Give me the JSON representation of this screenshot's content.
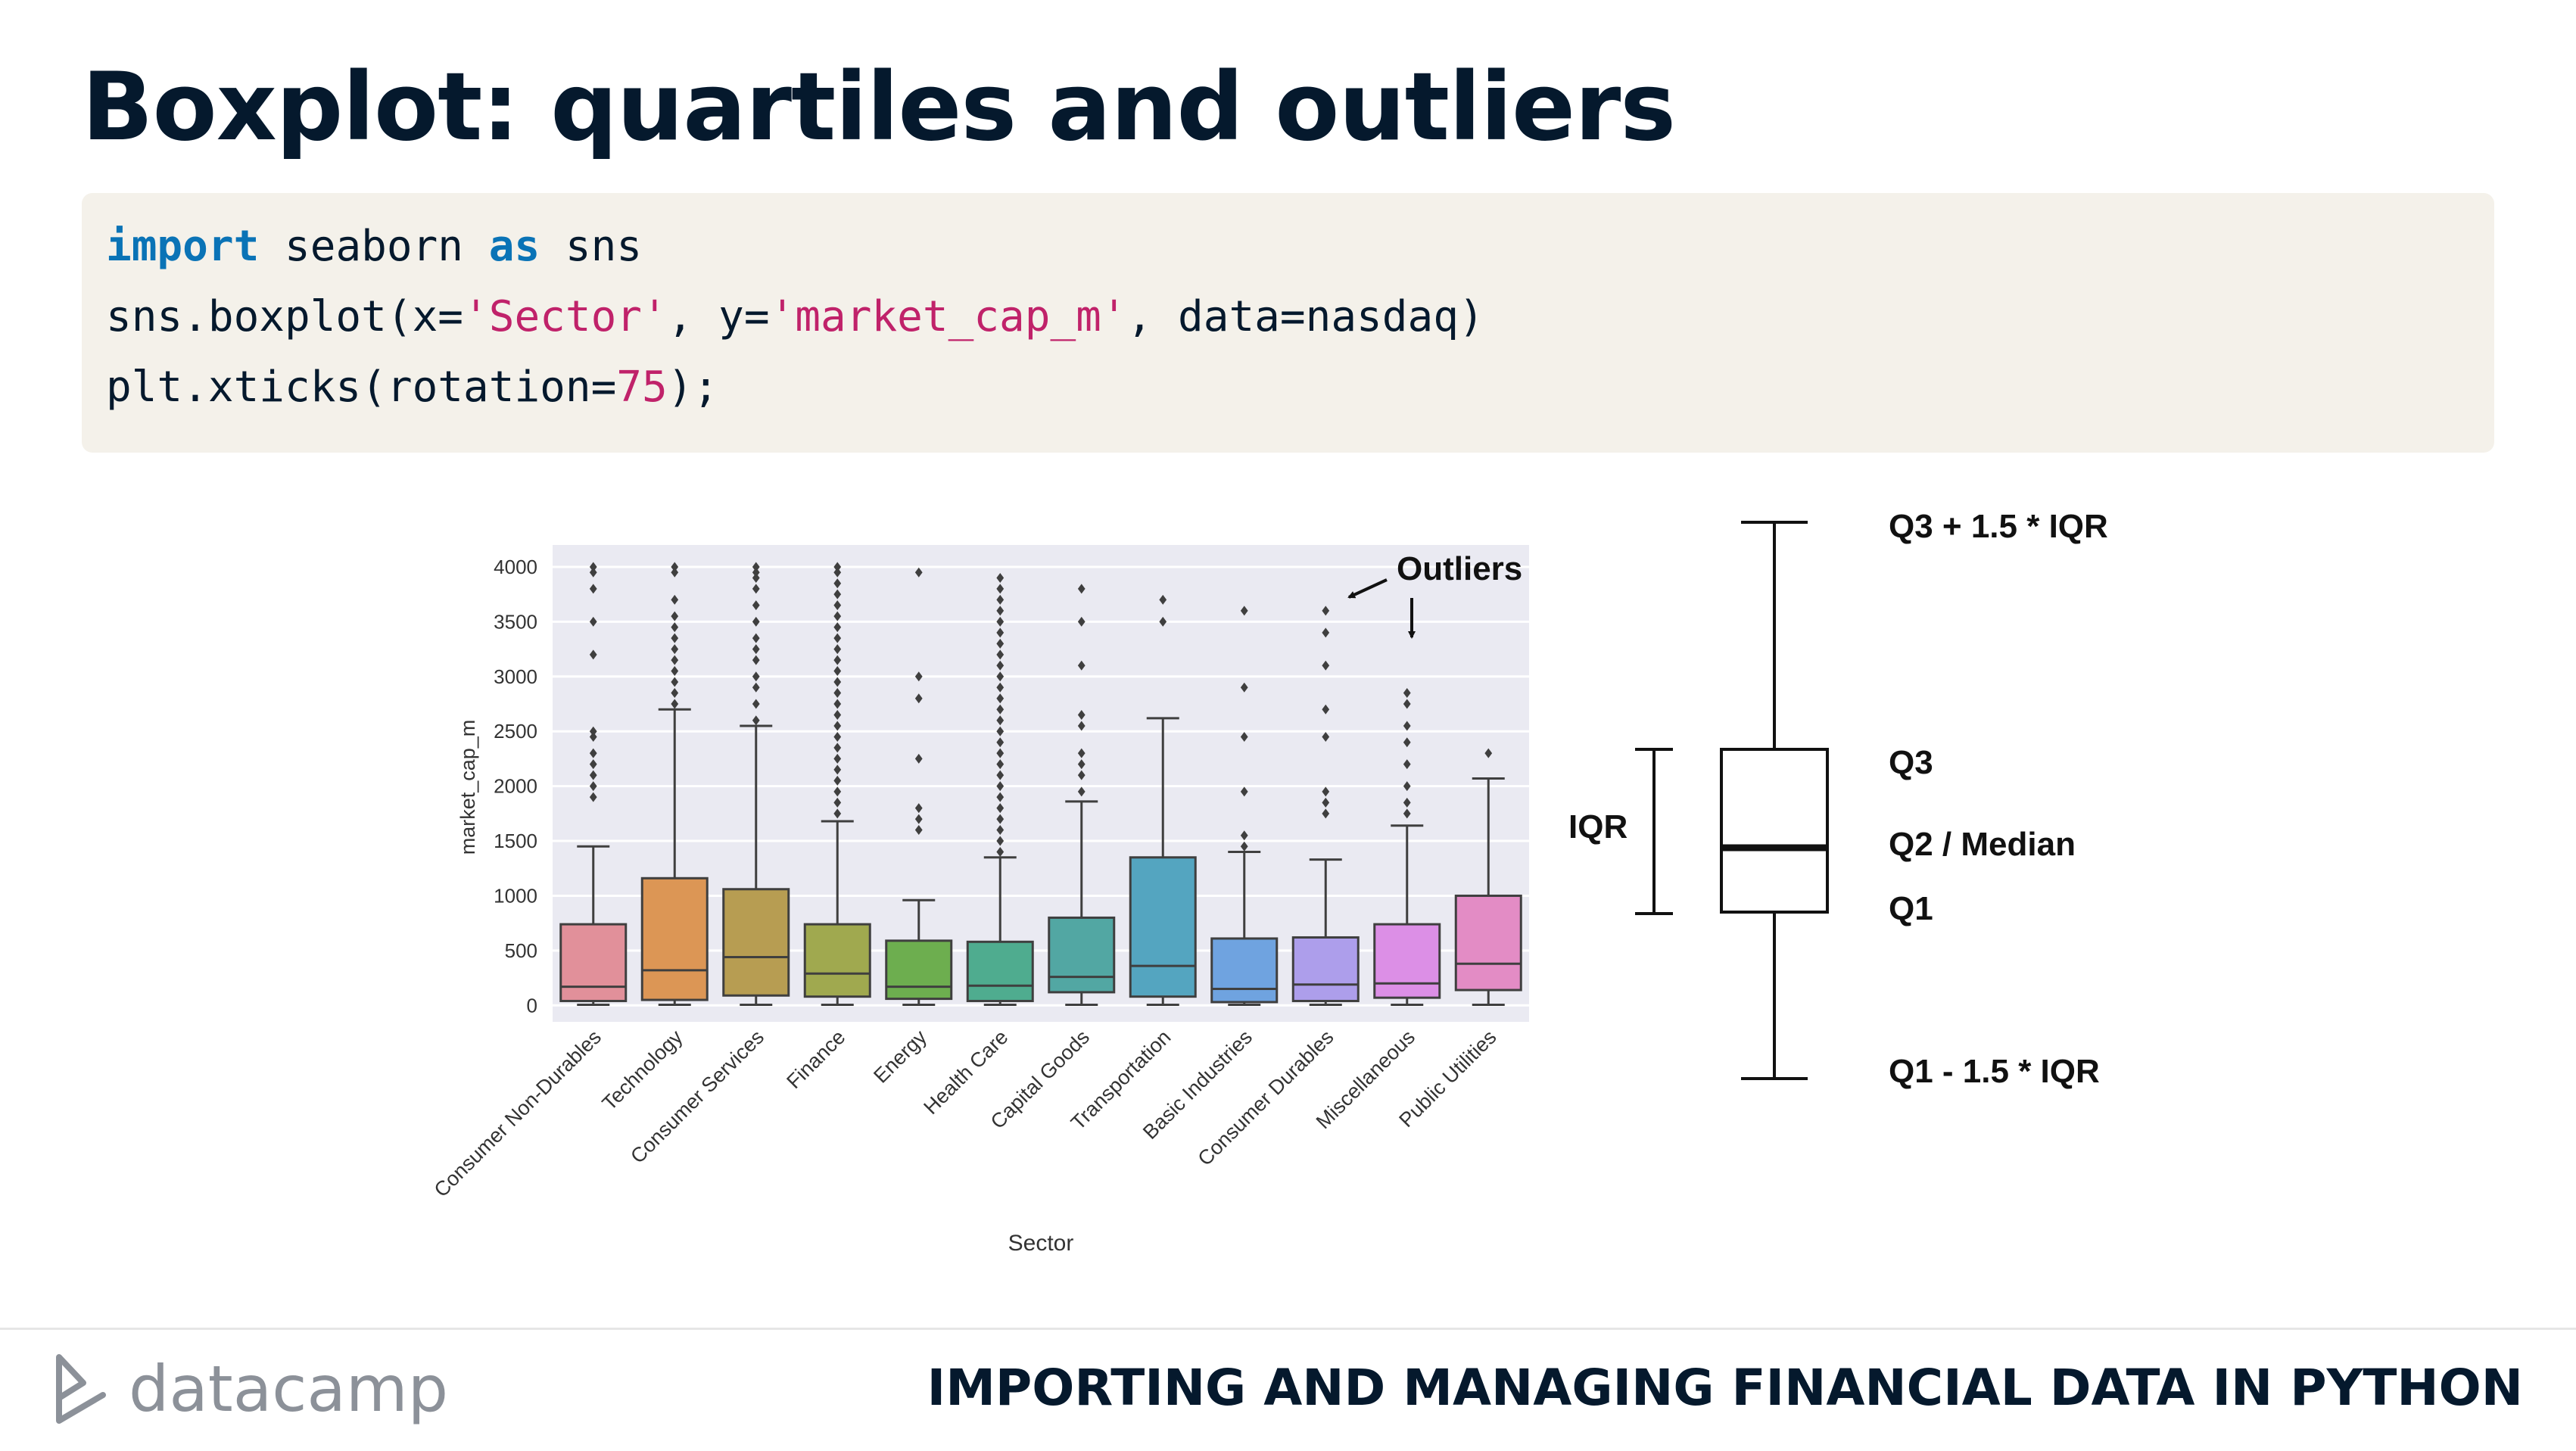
{
  "slide": {
    "title": "Boxplot: quartiles and outliers",
    "footer_course": "IMPORTING AND MANAGING FINANCIAL DATA IN PYTHON",
    "brand_name": "datacamp",
    "brand_icon": "datacamp-logo-icon"
  },
  "code": {
    "line1": {
      "kw1": "import",
      "t1": " seaborn ",
      "kw2": "as",
      "t2": " sns"
    },
    "line2": {
      "t1": "sns.boxplot(x=",
      "s1": "'Sector'",
      "t2": ", y=",
      "s2": "'market_cap_m'",
      "t3": ", data=nasdaq)"
    },
    "line3": {
      "t1": "plt.xticks(rotation=",
      "n1": "75",
      "t2": ");"
    }
  },
  "chart_data": [
    {
      "type": "boxplot",
      "xlabel": "Sector",
      "ylabel": "market_cap_m",
      "ylim": [
        -150,
        4200
      ],
      "yticks": [
        0,
        500,
        1000,
        1500,
        2000,
        2500,
        3000,
        3500,
        4000
      ],
      "grid": true,
      "annotation": "Outliers",
      "colors": {
        "background": "#eaeaf2",
        "grid": "#ffffff"
      },
      "categories": [
        "Consumer Non-Durables",
        "Technology",
        "Consumer Services",
        "Finance",
        "Energy",
        "Health Care",
        "Capital Goods",
        "Transportation",
        "Basic Industries",
        "Consumer Durables",
        "Miscellaneous",
        "Public Utilities"
      ],
      "boxes": [
        {
          "color": "#e1909a",
          "min": 5,
          "q1": 40,
          "median": 170,
          "q3": 740,
          "max": 1450,
          "outliers": [
            1900,
            2000,
            2100,
            2200,
            2300,
            2450,
            2500,
            3200,
            3500,
            3800,
            3950,
            4000
          ]
        },
        {
          "color": "#dc9655",
          "min": 5,
          "q1": 50,
          "median": 320,
          "q3": 1160,
          "max": 2700,
          "outliers": [
            2750,
            2850,
            2950,
            3050,
            3150,
            3250,
            3350,
            3450,
            3550,
            3700,
            3950,
            4000
          ]
        },
        {
          "color": "#b79d52",
          "min": 5,
          "q1": 90,
          "median": 440,
          "q3": 1060,
          "max": 2550,
          "outliers": [
            2600,
            2750,
            2900,
            3000,
            3150,
            3250,
            3350,
            3500,
            3650,
            3800,
            3900,
            3950,
            4000
          ]
        },
        {
          "color": "#a0a94f",
          "min": 5,
          "q1": 80,
          "median": 290,
          "q3": 740,
          "max": 1680,
          "outliers": [
            1750,
            1850,
            1950,
            2050,
            2150,
            2250,
            2350,
            2450,
            2550,
            2650,
            2750,
            2850,
            2950,
            3050,
            3150,
            3250,
            3350,
            3450,
            3550,
            3650,
            3750,
            3850,
            3950,
            4000
          ]
        },
        {
          "color": "#6dae4f",
          "min": 5,
          "q1": 60,
          "median": 170,
          "q3": 590,
          "max": 960,
          "outliers": [
            1600,
            1700,
            1800,
            2250,
            2800,
            3000,
            3950
          ]
        },
        {
          "color": "#4fac8f",
          "min": 5,
          "q1": 40,
          "median": 180,
          "q3": 580,
          "max": 1350,
          "outliers": [
            1400,
            1500,
            1600,
            1700,
            1800,
            1900,
            2000,
            2100,
            2200,
            2300,
            2400,
            2500,
            2600,
            2700,
            2800,
            2900,
            3000,
            3100,
            3200,
            3300,
            3400,
            3500,
            3600,
            3700,
            3800,
            3900
          ]
        },
        {
          "color": "#52a7a3",
          "min": 5,
          "q1": 120,
          "median": 260,
          "q3": 800,
          "max": 1860,
          "outliers": [
            1950,
            2100,
            2200,
            2300,
            2550,
            2650,
            3100,
            3500,
            3800
          ]
        },
        {
          "color": "#54a5c0",
          "min": 5,
          "q1": 80,
          "median": 360,
          "q3": 1350,
          "max": 2620,
          "outliers": [
            3500,
            3700
          ]
        },
        {
          "color": "#6fa3e0",
          "min": 5,
          "q1": 30,
          "median": 150,
          "q3": 610,
          "max": 1400,
          "outliers": [
            1450,
            1550,
            1950,
            2450,
            2900,
            3600
          ]
        },
        {
          "color": "#ad9eeb",
          "min": 5,
          "q1": 40,
          "median": 190,
          "q3": 620,
          "max": 1330,
          "outliers": [
            1750,
            1850,
            1950,
            2450,
            2700,
            3100,
            3400,
            3600
          ]
        },
        {
          "color": "#dc8fe6",
          "min": 5,
          "q1": 70,
          "median": 200,
          "q3": 740,
          "max": 1640,
          "outliers": [
            1750,
            1850,
            2000,
            2200,
            2400,
            2550,
            2750,
            2850
          ]
        },
        {
          "color": "#e38cc5",
          "min": 5,
          "q1": 140,
          "median": 380,
          "q3": 1000,
          "max": 2070,
          "outliers": [
            2300
          ]
        }
      ]
    },
    {
      "type": "diagram",
      "labels": {
        "upper_whisker": "Q3 + 1.5 * IQR",
        "q3": "Q3",
        "median": "Q2 / Median",
        "q1": "Q1",
        "lower_whisker": "Q1 - 1.5 * IQR",
        "iqr": "IQR"
      }
    }
  ]
}
